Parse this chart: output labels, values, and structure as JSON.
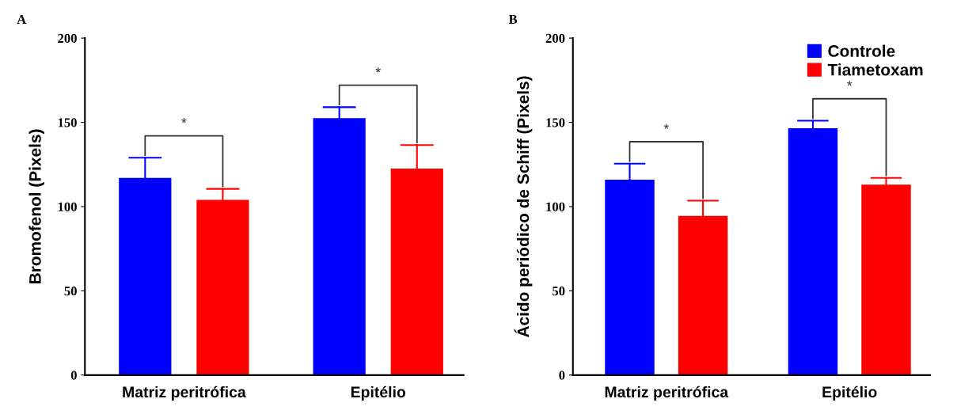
{
  "chart_data": [
    {
      "type": "bar",
      "title": "A",
      "ylabel": "Bromofenol (Pixels)",
      "categories": [
        "Matriz peritrófica",
        "Epitélio"
      ],
      "ylim": [
        0,
        200
      ],
      "yticks": [
        0,
        50,
        100,
        150,
        200
      ],
      "grid": false,
      "series": [
        {
          "color": "#0000ff",
          "values": [
            117,
            152.5
          ],
          "errors": [
            [
              117,
              129
            ],
            [
              152.5,
              159
            ]
          ]
        },
        {
          "color": "#ff0000",
          "values": [
            104,
            122.5
          ],
          "errors": [
            [
              104,
              110.5
            ],
            [
              122.5,
              136.5
            ]
          ]
        }
      ],
      "annotations": [
        "*",
        "*"
      ]
    },
    {
      "type": "bar",
      "title": "B",
      "ylabel": "Ácido periódico de Schiff (Pixels)",
      "categories": [
        "Matriz peritrófica",
        "Epitélio"
      ],
      "ylim": [
        0,
        200
      ],
      "yticks": [
        0,
        50,
        100,
        150,
        200
      ],
      "grid": false,
      "legend": "top right",
      "series": [
        {
          "name": "Controle",
          "color": "#0000ff",
          "values": [
            116,
            146.5
          ],
          "errors": [
            [
              116,
              125.5
            ],
            [
              146.5,
              151
            ]
          ]
        },
        {
          "name": "Tiametoxam",
          "color": "#ff0000",
          "values": [
            94.5,
            113
          ],
          "errors": [
            [
              94.5,
              103.5
            ],
            [
              113,
              117
            ]
          ]
        }
      ],
      "annotations": [
        "*",
        "*"
      ]
    }
  ]
}
